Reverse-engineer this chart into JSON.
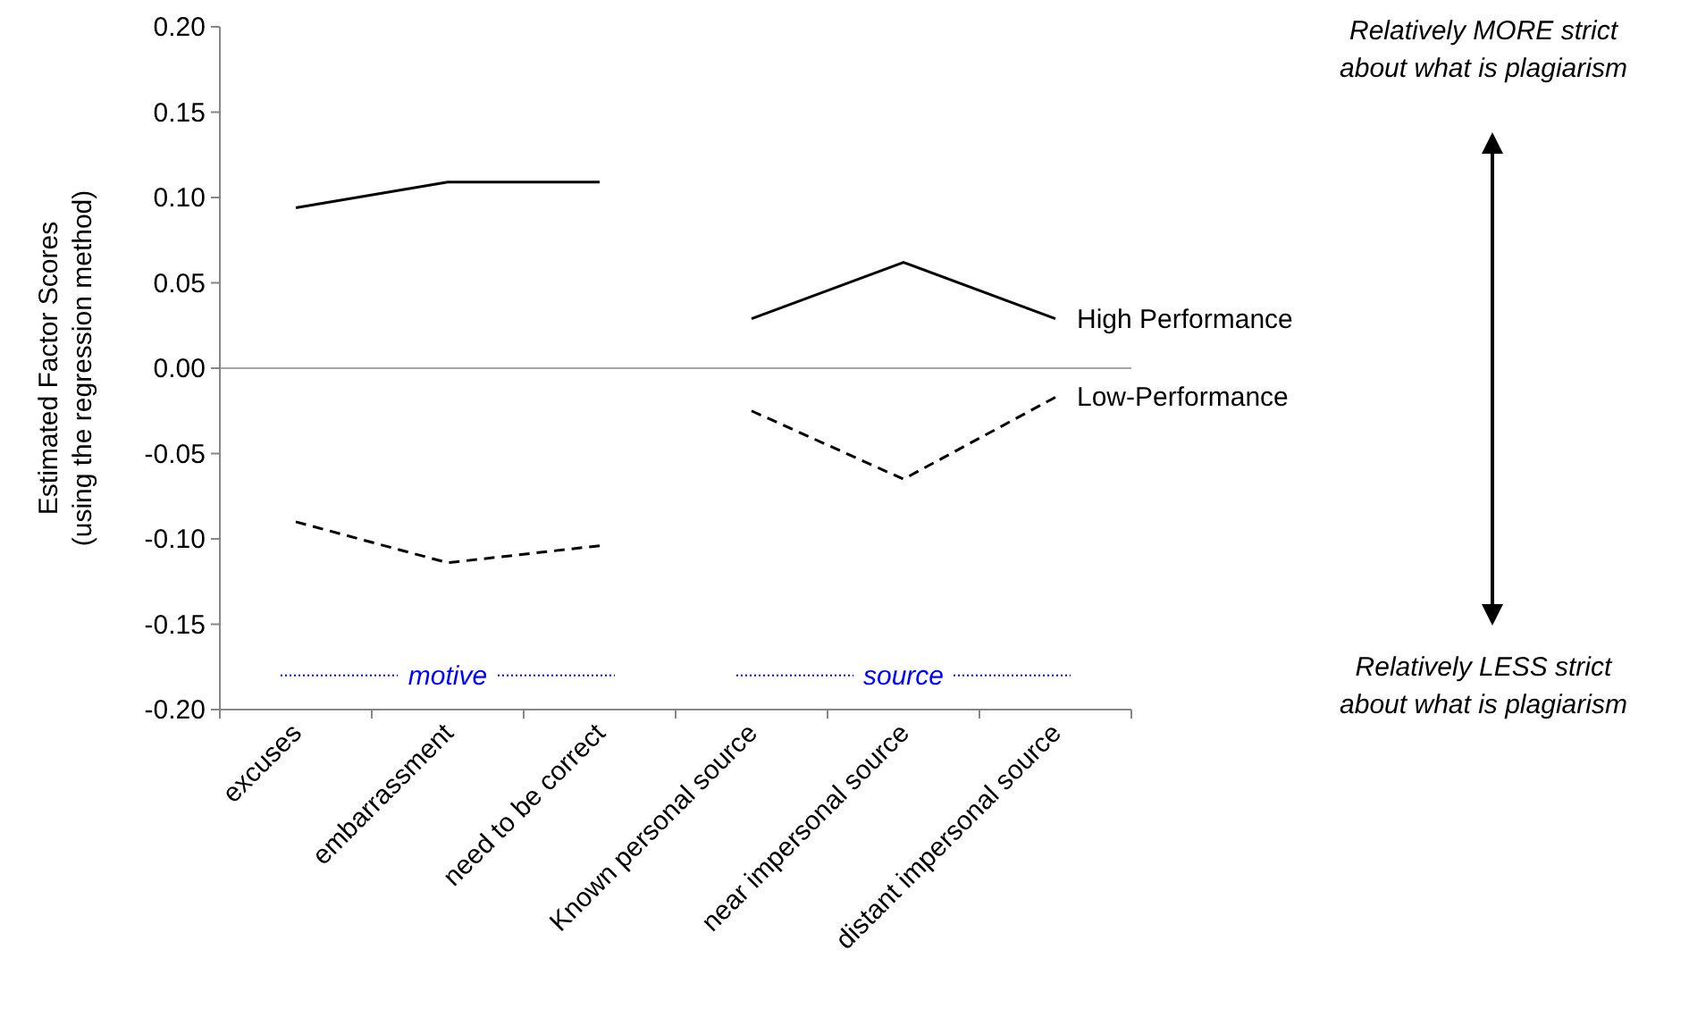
{
  "chart_data": {
    "type": "line",
    "ylabel": "Estimated Factor Scores\n(using the regression method)",
    "categories": [
      "excuses",
      "embarrassment",
      "need to be correct",
      "Known personal source",
      "near impersonal source",
      "distant impersonal source"
    ],
    "series": [
      {
        "color": "#000000",
        "values": [
          0.094,
          0.109,
          0.109,
          null,
          null,
          null
        ]
      },
      {
        "name": "High Performance",
        "color": "#000000",
        "values": [
          null,
          null,
          null,
          0.029,
          0.062,
          0.029
        ]
      },
      {
        "color": "#000000",
        "line_style": "dashed",
        "values": [
          -0.09,
          -0.114,
          -0.104,
          null,
          null,
          null
        ]
      },
      {
        "name": "Low-Performance",
        "color": "#000000",
        "line_style": "dashed",
        "values": [
          null,
          null,
          null,
          -0.025,
          -0.065,
          -0.017
        ]
      }
    ],
    "ylim": [
      -0.2,
      0.2
    ],
    "yticks": [
      {
        "value": -0.2,
        "label": "-0.20"
      },
      {
        "value": -0.15,
        "label": "-0.15"
      },
      {
        "value": -0.1,
        "label": "-0.10"
      },
      {
        "value": -0.05,
        "label": "-0.05"
      },
      {
        "value": 0,
        "label": "0.00"
      },
      {
        "value": 0.05,
        "label": "0.05"
      },
      {
        "value": 0.1,
        "label": "0.10"
      },
      {
        "value": 0.15,
        "label": "0.15"
      },
      {
        "value": 0.2,
        "label": "0.20"
      }
    ],
    "ref_lines": [
      {
        "axis": "y",
        "value": 0,
        "color": "#a6a6a6"
      }
    ],
    "annotations": [
      "motive",
      "source",
      "Relatively MORE strict\nabout what is plagiarism",
      "Relatively LESS strict\nabout what is plagiarism"
    ],
    "grid": false,
    "marker": "none"
  }
}
